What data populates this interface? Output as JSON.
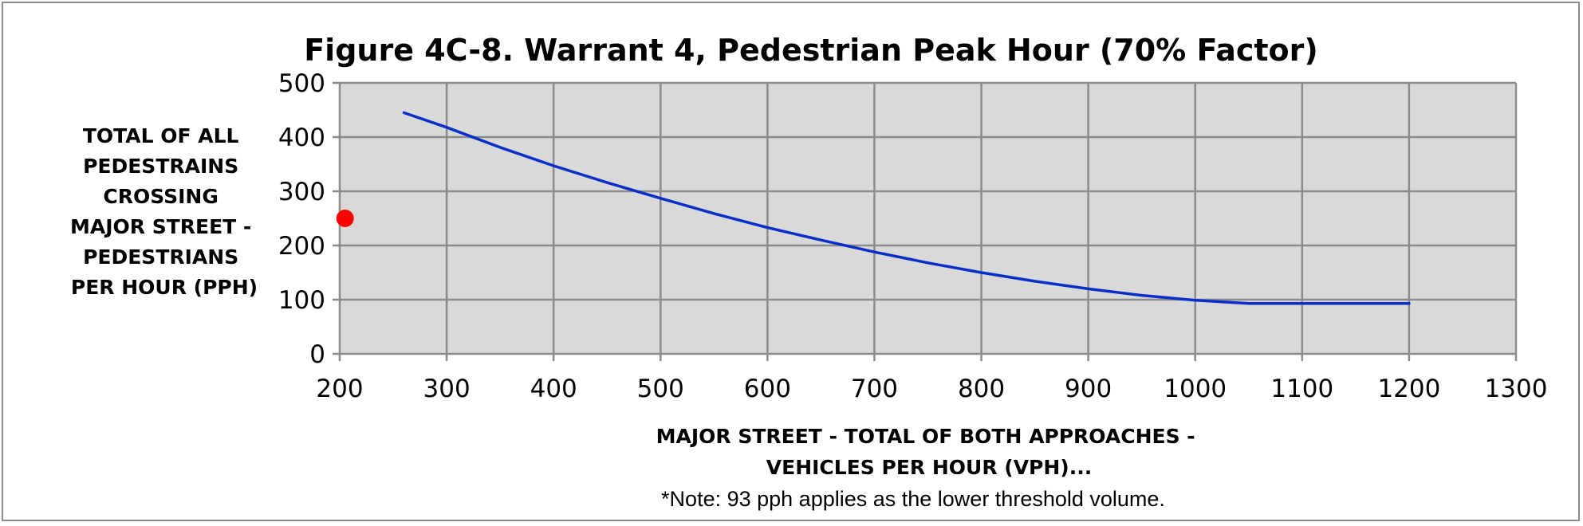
{
  "chart_data": {
    "type": "line",
    "title": "Figure 4C-8. Warrant 4, Pedestrian Peak Hour  (70% Factor)",
    "ylabel_lines": [
      "TOTAL OF ALL",
      "PEDESTRAINS",
      "CROSSING",
      "MAJOR STREET -",
      "PEDESTRIANS",
      "PER HOUR (PPH)"
    ],
    "xlabel_lines": [
      "MAJOR STREET - TOTAL OF BOTH APPROACHES -",
      "VEHICLES PER HOUR (VPH)..."
    ],
    "note": "*Note: 93 pph applies as the lower threshold volume.",
    "xlim": [
      200,
      1300
    ],
    "ylim": [
      0,
      500
    ],
    "x_ticks": [
      "200",
      "300",
      "400",
      "500",
      "600",
      "700",
      "800",
      "900",
      "1000",
      "1100",
      "1200",
      "1300"
    ],
    "y_ticks": [
      "0",
      "100",
      "200",
      "300",
      "400",
      "500"
    ],
    "grid": true,
    "plot_background": "#d9d9d9",
    "grid_color": "#8c8c8c",
    "series": [
      {
        "kind": "line",
        "color": "#0a2fc9",
        "points": [
          [
            260,
            445
          ],
          [
            300,
            418
          ],
          [
            350,
            381
          ],
          [
            400,
            347
          ],
          [
            450,
            316
          ],
          [
            500,
            287
          ],
          [
            550,
            259
          ],
          [
            600,
            233
          ],
          [
            650,
            210
          ],
          [
            700,
            188
          ],
          [
            750,
            168
          ],
          [
            800,
            150
          ],
          [
            850,
            134
          ],
          [
            900,
            120
          ],
          [
            950,
            108
          ],
          [
            1000,
            99
          ],
          [
            1050,
            93
          ],
          [
            1100,
            93
          ],
          [
            1150,
            93
          ],
          [
            1200,
            93
          ]
        ]
      },
      {
        "kind": "point",
        "color": "#ff0000",
        "points": [
          [
            205,
            250
          ]
        ]
      }
    ]
  }
}
